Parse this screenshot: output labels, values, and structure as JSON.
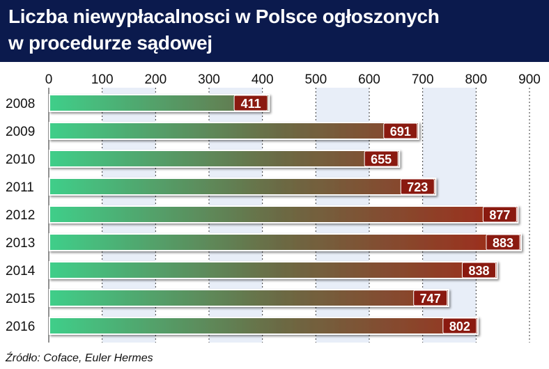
{
  "header": {
    "title_line1": "Liczba niewypłacalnosci w Polsce ogłoszonych",
    "title_line2": "w procedurze sądowej"
  },
  "source": "Źródło: Coface, Euler Hermes",
  "colors": {
    "header_bg": "#0b1a4d",
    "bar_start": "#3fcf8a",
    "bar_mid": "#6b6a44",
    "bar_end": "#a52416",
    "band": "#e8eef8",
    "label_box": "#8a1a10"
  },
  "chart_data": {
    "type": "bar",
    "orientation": "horizontal",
    "title": "Liczba niewypłacalnosci w Polsce ogłoszonych w procedurze sądowej",
    "xlabel": "",
    "ylabel": "",
    "xlim": [
      0,
      900
    ],
    "ticks": [
      0,
      100,
      200,
      300,
      400,
      500,
      600,
      700,
      800,
      900
    ],
    "axis_position": "top",
    "grid": true,
    "categories": [
      "2008",
      "2009",
      "2010",
      "2011",
      "2012",
      "2013",
      "2014",
      "2015",
      "2016"
    ],
    "values": [
      411,
      691,
      655,
      723,
      877,
      883,
      838,
      747,
      802
    ],
    "data_labels": [
      "411",
      "691",
      "655",
      "723",
      "877",
      "883",
      "838",
      "747",
      "802"
    ]
  }
}
